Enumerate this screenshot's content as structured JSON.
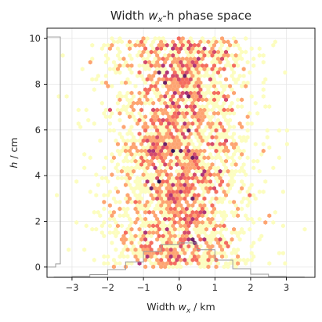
{
  "chart_data": {
    "type": "heatmap",
    "title": "Width   wₓ-h phase space",
    "title_parts": {
      "prefix": "Width   ",
      "var": "w",
      "sub": "x",
      "suffix": "-h phase space"
    },
    "xlabel_parts": {
      "prefix": "Width   ",
      "var": "w",
      "sub": "x",
      "suffix": " / km"
    },
    "ylabel_parts": {
      "var": "h",
      "suffix": " / cm"
    },
    "xlabel": "Width   wₓ / km",
    "ylabel": "h / cm",
    "xlim": [
      -3.7,
      3.8
    ],
    "ylim": [
      -0.45,
      10.45
    ],
    "xticks": [
      -3,
      -2,
      -1,
      0,
      1,
      2,
      3
    ],
    "yticks": [
      0,
      2,
      4,
      6,
      8,
      10
    ],
    "xtick_labels": [
      "−3",
      "−2",
      "−1",
      "0",
      "1",
      "2",
      "3"
    ],
    "ytick_labels": [
      "0",
      "2",
      "4",
      "6",
      "8",
      "10"
    ],
    "grid": true,
    "colormap": "magma_r",
    "density": {
      "x_distribution": "normal",
      "x_mean": 0.0,
      "x_std": 1.0,
      "y_distribution": "uniform",
      "y_range": [
        0,
        10
      ],
      "n_points": 3000
    },
    "marginal_x_histogram": {
      "bin_centers": [
        -3.25,
        -2.75,
        -2.25,
        -1.75,
        -1.25,
        -0.75,
        -0.25,
        0.25,
        0.75,
        1.25,
        1.75,
        2.25,
        2.75,
        3.25
      ],
      "relative_heights": [
        0.01,
        0.03,
        0.08,
        0.22,
        0.45,
        0.75,
        0.95,
        1.0,
        0.8,
        0.5,
        0.25,
        0.09,
        0.03,
        0.01
      ],
      "edge": "bottom"
    },
    "marginal_y_histogram": {
      "range": [
        0,
        10
      ],
      "shape": "flat",
      "edge": "left"
    },
    "colors": {
      "background": "#ffffff",
      "grid": "#e6e6e6",
      "axis": "#000000",
      "histogram": "#9a9a9a"
    }
  }
}
